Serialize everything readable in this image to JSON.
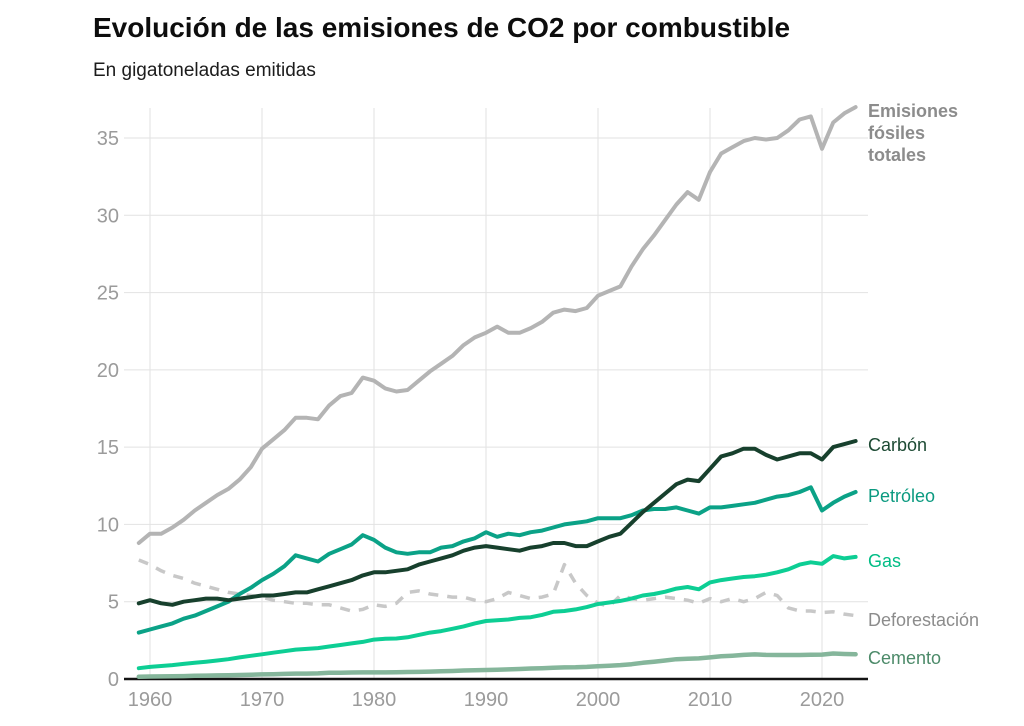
{
  "header": {
    "title": "Evolución de las emisiones de CO2 por combustible",
    "subtitle": "En gigatoneladas emitidas"
  },
  "chart_data": {
    "type": "line",
    "title": "Evolución de las emisiones de CO2 por combustible",
    "subtitle": "En gigatoneladas emitidas",
    "unit": "gigatoneladas de CO2",
    "grid": true,
    "legend_position": "right-of-line-ends",
    "xlim": [
      1959,
      2023
    ],
    "ylim": [
      0,
      37.5
    ],
    "x_ticks": [
      1960,
      1970,
      1980,
      1990,
      2000,
      2010,
      2020
    ],
    "y_ticks": [
      0,
      5,
      10,
      15,
      20,
      25,
      30,
      35
    ],
    "x": [
      1959,
      1960,
      1961,
      1962,
      1963,
      1964,
      1965,
      1966,
      1967,
      1968,
      1969,
      1970,
      1971,
      1972,
      1973,
      1974,
      1975,
      1976,
      1977,
      1978,
      1979,
      1980,
      1981,
      1982,
      1983,
      1984,
      1985,
      1986,
      1987,
      1988,
      1989,
      1990,
      1991,
      1992,
      1993,
      1994,
      1995,
      1996,
      1997,
      1998,
      1999,
      2000,
      2001,
      2002,
      2003,
      2004,
      2005,
      2006,
      2007,
      2008,
      2009,
      2010,
      2011,
      2012,
      2013,
      2014,
      2015,
      2016,
      2017,
      2018,
      2019,
      2020,
      2021,
      2022,
      2023
    ],
    "series": [
      {
        "name": "Emisiones fósiles totales",
        "label_text": "Emisiones\nfósiles\ntotales",
        "color": "#b4b4b4",
        "label_color": "#8c8c8c",
        "style": "solid",
        "bold_label": true,
        "values": [
          8.8,
          9.4,
          9.4,
          9.8,
          10.3,
          10.9,
          11.4,
          11.9,
          12.3,
          12.9,
          13.7,
          14.9,
          15.5,
          16.1,
          16.9,
          16.9,
          16.8,
          17.7,
          18.3,
          18.5,
          19.5,
          19.3,
          18.8,
          18.6,
          18.7,
          19.3,
          19.9,
          20.4,
          20.9,
          21.6,
          22.1,
          22.4,
          22.8,
          22.4,
          22.4,
          22.7,
          23.1,
          23.7,
          23.9,
          23.8,
          24.0,
          24.8,
          25.1,
          25.4,
          26.7,
          27.8,
          28.7,
          29.7,
          30.7,
          31.5,
          31.0,
          32.8,
          34.0,
          34.4,
          34.8,
          35.0,
          34.9,
          35.0,
          35.5,
          36.2,
          36.4,
          34.3,
          36.0,
          36.6,
          37.0
        ]
      },
      {
        "name": "Carbón",
        "label_text": "Carbón",
        "color": "#17402d",
        "label_color": "#1c4a33",
        "style": "solid",
        "bold_label": false,
        "values": [
          4.9,
          5.1,
          4.9,
          4.8,
          5.0,
          5.1,
          5.2,
          5.2,
          5.1,
          5.2,
          5.3,
          5.4,
          5.4,
          5.5,
          5.6,
          5.6,
          5.8,
          6.0,
          6.2,
          6.4,
          6.7,
          6.9,
          6.9,
          7.0,
          7.1,
          7.4,
          7.6,
          7.8,
          8.0,
          8.3,
          8.5,
          8.6,
          8.5,
          8.4,
          8.3,
          8.5,
          8.6,
          8.8,
          8.8,
          8.6,
          8.6,
          8.9,
          9.2,
          9.4,
          10.1,
          10.8,
          11.4,
          12.0,
          12.6,
          12.9,
          12.8,
          13.6,
          14.4,
          14.6,
          14.9,
          14.9,
          14.5,
          14.2,
          14.4,
          14.6,
          14.6,
          14.2,
          15.0,
          15.2,
          15.4
        ]
      },
      {
        "name": "Petróleo",
        "label_text": "Petróleo",
        "color": "#0ba287",
        "label_color": "#0b9a80",
        "style": "solid",
        "bold_label": false,
        "values": [
          3.0,
          3.2,
          3.4,
          3.6,
          3.9,
          4.1,
          4.4,
          4.7,
          5.0,
          5.5,
          5.9,
          6.4,
          6.8,
          7.3,
          8.0,
          7.8,
          7.6,
          8.1,
          8.4,
          8.7,
          9.3,
          9.0,
          8.5,
          8.2,
          8.1,
          8.2,
          8.2,
          8.5,
          8.6,
          8.9,
          9.1,
          9.5,
          9.2,
          9.4,
          9.3,
          9.5,
          9.6,
          9.8,
          10.0,
          10.1,
          10.2,
          10.4,
          10.4,
          10.4,
          10.6,
          10.9,
          11.0,
          11.0,
          11.1,
          10.9,
          10.7,
          11.1,
          11.1,
          11.2,
          11.3,
          11.4,
          11.6,
          11.8,
          11.9,
          12.1,
          12.4,
          10.9,
          11.4,
          11.8,
          12.1
        ]
      },
      {
        "name": "Gas",
        "label_text": "Gas",
        "color": "#0dce94",
        "label_color": "#00bd85",
        "style": "solid",
        "bold_label": false,
        "values": [
          0.7,
          0.78,
          0.84,
          0.9,
          0.98,
          1.05,
          1.12,
          1.2,
          1.28,
          1.4,
          1.5,
          1.6,
          1.7,
          1.8,
          1.9,
          1.95,
          2.0,
          2.1,
          2.2,
          2.3,
          2.4,
          2.55,
          2.6,
          2.62,
          2.7,
          2.85,
          3.0,
          3.1,
          3.25,
          3.4,
          3.6,
          3.75,
          3.8,
          3.85,
          3.95,
          4.0,
          4.15,
          4.35,
          4.4,
          4.5,
          4.65,
          4.85,
          4.95,
          5.05,
          5.2,
          5.4,
          5.5,
          5.65,
          5.85,
          5.95,
          5.8,
          6.25,
          6.4,
          6.5,
          6.6,
          6.65,
          6.75,
          6.9,
          7.1,
          7.4,
          7.55,
          7.45,
          7.95,
          7.8,
          7.9
        ]
      },
      {
        "name": "Deforestación",
        "label_text": "Deforestación",
        "color": "#c8c8c8",
        "label_color": "#8c8c8c",
        "style": "dashed",
        "bold_label": false,
        "values": [
          7.7,
          7.4,
          7.0,
          6.7,
          6.5,
          6.2,
          6.0,
          5.8,
          5.6,
          5.5,
          5.4,
          5.3,
          5.1,
          5.0,
          4.9,
          4.9,
          4.8,
          4.8,
          4.6,
          4.4,
          4.5,
          4.8,
          4.7,
          4.9,
          5.6,
          5.7,
          5.5,
          5.4,
          5.3,
          5.3,
          5.1,
          5.0,
          5.2,
          5.6,
          5.4,
          5.2,
          5.3,
          5.5,
          7.4,
          6.2,
          5.4,
          4.9,
          4.7,
          5.4,
          5.2,
          5.1,
          5.2,
          5.3,
          5.2,
          5.1,
          4.9,
          5.2,
          5.0,
          5.2,
          5.0,
          5.2,
          5.6,
          5.4,
          4.6,
          4.4,
          4.4,
          4.3,
          4.35,
          4.2,
          4.1
        ]
      },
      {
        "name": "Cemento",
        "label_text": "Cemento",
        "color": "#85b69b",
        "label_color": "#4c8a69",
        "style": "solid",
        "bold_label": false,
        "values": [
          0.15,
          0.16,
          0.17,
          0.18,
          0.19,
          0.21,
          0.22,
          0.23,
          0.24,
          0.26,
          0.28,
          0.3,
          0.31,
          0.33,
          0.35,
          0.35,
          0.36,
          0.4,
          0.41,
          0.42,
          0.43,
          0.43,
          0.43,
          0.44,
          0.45,
          0.46,
          0.48,
          0.5,
          0.52,
          0.55,
          0.57,
          0.58,
          0.6,
          0.62,
          0.65,
          0.68,
          0.7,
          0.73,
          0.75,
          0.76,
          0.78,
          0.83,
          0.86,
          0.9,
          0.96,
          1.05,
          1.12,
          1.2,
          1.28,
          1.31,
          1.33,
          1.4,
          1.47,
          1.51,
          1.56,
          1.59,
          1.56,
          1.55,
          1.55,
          1.55,
          1.57,
          1.58,
          1.65,
          1.62,
          1.6
        ]
      }
    ],
    "style_hints": {
      "grid_color": "#e2e2e2",
      "axis_color": "#141414",
      "tick_color": "#9b9b9b"
    }
  }
}
